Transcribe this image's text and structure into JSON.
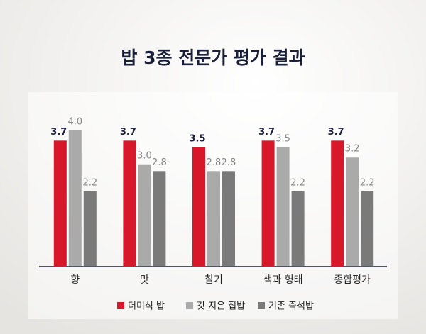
{
  "chart_data": {
    "type": "bar",
    "title": "밥 3종 전문가 평가 결과",
    "categories": [
      "향",
      "맛",
      "찰기",
      "색과 형태",
      "종합평가"
    ],
    "series": [
      {
        "name": "더미식 밥",
        "color": "#d7182a",
        "values": [
          3.7,
          3.7,
          3.5,
          3.7,
          3.7
        ],
        "value_labels": [
          "3.7",
          "3.7",
          "3.5",
          "3.7",
          "3.7"
        ]
      },
      {
        "name": "갓 지은 집밥",
        "color": "#aaaaaa",
        "values": [
          4.0,
          3.0,
          2.8,
          3.5,
          3.2
        ],
        "value_labels": [
          "4.0",
          "3.0",
          "2.8",
          "3.5",
          "3.2"
        ]
      },
      {
        "name": "기존 즉석밥",
        "color": "#7a7a7a",
        "values": [
          2.2,
          2.8,
          2.8,
          2.2,
          2.2
        ],
        "value_labels": [
          "2.2",
          "2.8",
          "2.8",
          "2.2",
          "2.2"
        ]
      }
    ],
    "ylim": [
      0,
      4
    ]
  }
}
